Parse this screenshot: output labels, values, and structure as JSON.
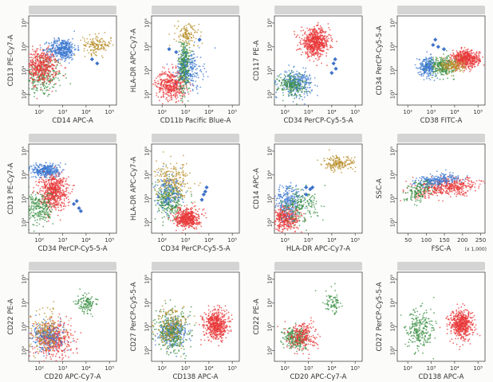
{
  "figure": {
    "colors": {
      "red": "#e8383a",
      "blue": "#3c78d0",
      "green": "#3a8f42",
      "gold": "#b88f2a",
      "gate_marker": "#3f72c8",
      "header_blur": "#d4d4d4",
      "frame": "#444444",
      "background": "#fbfbfa"
    },
    "scale_label": "(x 1,000)"
  },
  "chart_data": [
    {
      "type": "scatter",
      "xlabel": "CD14 APC-A",
      "ylabel": "CD13 PE-Cy7-A",
      "xscale": "log",
      "yscale": "log",
      "x_ticks": [
        "10²",
        "10³",
        "10⁴",
        "10⁵"
      ],
      "y_ticks": [
        "10²",
        "10³",
        "10⁴",
        "10⁵"
      ],
      "clusters": [
        {
          "color": "green",
          "center": [
            120,
            600
          ],
          "spread": [
            0.45,
            0.45
          ],
          "count": 300
        },
        {
          "color": "red",
          "center": [
            120,
            1500
          ],
          "spread": [
            0.35,
            0.35
          ],
          "count": 500
        },
        {
          "color": "blue",
          "center": [
            1000,
            8000
          ],
          "spread": [
            0.3,
            0.22
          ],
          "count": 400
        },
        {
          "color": "gold",
          "center": [
            30000,
            12000
          ],
          "spread": [
            0.3,
            0.2
          ],
          "count": 150
        }
      ],
      "markers": [
        [
          30000,
          2000
        ],
        [
          18000,
          3000
        ]
      ]
    },
    {
      "type": "scatter",
      "xlabel": "CD11b Pacific Blue-A",
      "ylabel": "HLA-DR APC-Cy7-A",
      "xscale": "log",
      "yscale": "log",
      "x_ticks": [
        "10²",
        "10³",
        "10⁴",
        "10⁵"
      ],
      "y_ticks": [
        "10²",
        "10³",
        "10⁴",
        "10⁵"
      ],
      "clusters": [
        {
          "color": "red",
          "center": [
            250,
            250
          ],
          "spread": [
            0.32,
            0.3
          ],
          "count": 450
        },
        {
          "color": "green",
          "center": [
            900,
            1500
          ],
          "spread": [
            0.12,
            0.55
          ],
          "count": 350
        },
        {
          "color": "blue",
          "center": [
            1500,
            1200
          ],
          "spread": [
            0.3,
            0.4
          ],
          "count": 200
        },
        {
          "color": "gold",
          "center": [
            1200,
            30000
          ],
          "spread": [
            0.25,
            0.25
          ],
          "count": 120
        }
      ],
      "markers": [
        [
          200,
          8000
        ],
        [
          400,
          6000
        ],
        [
          4000,
          20000
        ]
      ]
    },
    {
      "type": "scatter",
      "xlabel": "CD34 PerCP-Cy5-5-A",
      "ylabel": "CD117 PE-A",
      "xscale": "log",
      "yscale": "log",
      "x_ticks": [
        "10²",
        "10³",
        "10⁴",
        "10⁵"
      ],
      "y_ticks": [
        "10²",
        "10³",
        "10⁴",
        "10⁵"
      ],
      "clusters": [
        {
          "color": "red",
          "center": [
            2000,
            15000
          ],
          "spread": [
            0.3,
            0.28
          ],
          "count": 650
        },
        {
          "color": "blue",
          "center": [
            300,
            300
          ],
          "spread": [
            0.35,
            0.25
          ],
          "count": 300
        },
        {
          "color": "green",
          "center": [
            200,
            250
          ],
          "spread": [
            0.3,
            0.25
          ],
          "count": 200
        }
      ],
      "markers": [
        [
          12000,
          2000
        ],
        [
          15000,
          1200
        ],
        [
          10000,
          800
        ],
        [
          14000,
          3000
        ]
      ]
    },
    {
      "type": "scatter",
      "xlabel": "CD38 FITC-A",
      "ylabel": "CD34 PerCP-Cy5-5-A",
      "xscale": "log",
      "yscale": "log",
      "x_ticks": [
        "10²",
        "10³",
        "10⁴",
        "10⁵"
      ],
      "y_ticks": [
        "10²",
        "10³",
        "10⁴",
        "10⁵"
      ],
      "clusters": [
        {
          "color": "red",
          "center": [
            30000,
            3000
          ],
          "spread": [
            0.3,
            0.18
          ],
          "count": 550
        },
        {
          "color": "blue",
          "center": [
            700,
            1500
          ],
          "spread": [
            0.18,
            0.2
          ],
          "count": 250
        },
        {
          "color": "green",
          "center": [
            3000,
            1500
          ],
          "spread": [
            0.25,
            0.2
          ],
          "count": 250
        },
        {
          "color": "gold",
          "center": [
            8000,
            1600
          ],
          "spread": [
            0.25,
            0.15
          ],
          "count": 150
        }
      ],
      "markers": [
        [
          1500,
          20000
        ],
        [
          2000,
          10000
        ],
        [
          3500,
          8000
        ],
        [
          1200,
          12000
        ]
      ]
    },
    {
      "type": "scatter",
      "xlabel": "CD34 PerCP-Cy5-5-A",
      "ylabel": "CD13 PE-Cy7-A",
      "xscale": "log",
      "yscale": "log",
      "x_ticks": [
        "10²",
        "10³",
        "10⁴",
        "10⁵"
      ],
      "y_ticks": [
        "10²",
        "10³",
        "10⁴",
        "10⁵"
      ],
      "clusters": [
        {
          "color": "blue",
          "center": [
            200,
            15000
          ],
          "spread": [
            0.3,
            0.15
          ],
          "count": 350
        },
        {
          "color": "red",
          "center": [
            400,
            2000
          ],
          "spread": [
            0.3,
            0.35
          ],
          "count": 600
        },
        {
          "color": "green",
          "center": [
            100,
            400
          ],
          "spread": [
            0.3,
            0.35
          ],
          "count": 250
        }
      ],
      "markers": [
        [
          4000,
          800
        ],
        [
          5000,
          400
        ],
        [
          3000,
          600
        ],
        [
          6000,
          300
        ]
      ]
    },
    {
      "type": "scatter",
      "xlabel": "CD34 PerCP-Cy5-5-A",
      "ylabel": "HLA-DR APC-Cy7-A",
      "xscale": "log",
      "yscale": "log",
      "x_ticks": [
        "10²",
        "10³",
        "10⁴",
        "10⁵"
      ],
      "y_ticks": [
        "10²",
        "10³",
        "10⁴",
        "10⁵"
      ],
      "clusters": [
        {
          "color": "green",
          "center": [
            200,
            800
          ],
          "spread": [
            0.3,
            0.4
          ],
          "count": 300
        },
        {
          "color": "gold",
          "center": [
            300,
            5000
          ],
          "spread": [
            0.35,
            0.4
          ],
          "count": 250
        },
        {
          "color": "blue",
          "center": [
            200,
            1500
          ],
          "spread": [
            0.3,
            0.4
          ],
          "count": 150
        },
        {
          "color": "red",
          "center": [
            1200,
            150
          ],
          "spread": [
            0.25,
            0.2
          ],
          "count": 500
        }
      ],
      "markers": [
        [
          7000,
          2000
        ],
        [
          5000,
          900
        ],
        [
          8000,
          3000
        ],
        [
          6000,
          1500
        ]
      ]
    },
    {
      "type": "scatter",
      "xlabel": "HLA-DR APC-Cy7-A",
      "ylabel": "CD14 APC-A",
      "xscale": "log",
      "yscale": "log",
      "x_ticks": [
        "10²",
        "10³",
        "10⁴",
        "10⁵"
      ],
      "y_ticks": [
        "10²",
        "10³",
        "10⁴",
        "10⁵"
      ],
      "clusters": [
        {
          "color": "red",
          "center": [
            120,
            150
          ],
          "spread": [
            0.3,
            0.25
          ],
          "count": 400
        },
        {
          "color": "blue",
          "center": [
            150,
            800
          ],
          "spread": [
            0.3,
            0.35
          ],
          "count": 250
        },
        {
          "color": "green",
          "center": [
            400,
            500
          ],
          "spread": [
            0.4,
            0.35
          ],
          "count": 200
        },
        {
          "color": "gold",
          "center": [
            20000,
            30000
          ],
          "spread": [
            0.35,
            0.15
          ],
          "count": 180
        }
      ],
      "markers": [
        [
          800,
          1500
        ],
        [
          1200,
          2500
        ],
        [
          1500,
          3000
        ],
        [
          800,
          3000
        ]
      ]
    },
    {
      "type": "scatter",
      "xlabel": "FSC-A",
      "ylabel": "SSC-A",
      "xscale": "linear",
      "yscale": "log",
      "xlim": [
        20,
        262
      ],
      "x_unit": "(x 1,000)",
      "x_ticks": [
        "50",
        "100",
        "150",
        "200",
        "250"
      ],
      "y_ticks": [
        "10²",
        "10³",
        "10⁴",
        "10⁵"
      ],
      "clusters": [
        {
          "color": "red",
          "center": [
            160,
            3000
          ],
          "spread": [
            45,
            0.18
          ],
          "count": 450,
          "trend": 0.9
        },
        {
          "color": "blue",
          "center": [
            130,
            6000
          ],
          "spread": [
            30,
            0.12
          ],
          "count": 250,
          "trend": 0.6
        },
        {
          "color": "green",
          "center": [
            80,
            2000
          ],
          "spread": [
            20,
            0.2
          ],
          "count": 150,
          "trend": 1.2
        }
      ],
      "markers": []
    },
    {
      "type": "scatter",
      "xlabel": "CD20 APC-Cy7-A",
      "ylabel": "CD22 PE-A",
      "xscale": "log",
      "yscale": "log",
      "x_ticks": [
        "10²",
        "10³",
        "10⁴",
        "10⁵"
      ],
      "y_ticks": [
        "10²",
        "10³",
        "10⁴",
        "10⁵"
      ],
      "clusters": [
        {
          "color": "red",
          "center": [
            400,
            300
          ],
          "spread": [
            0.4,
            0.4
          ],
          "count": 450
        },
        {
          "color": "blue",
          "center": [
            250,
            400
          ],
          "spread": [
            0.35,
            0.3
          ],
          "count": 250
        },
        {
          "color": "gold",
          "center": [
            200,
            600
          ],
          "spread": [
            0.35,
            0.45
          ],
          "count": 200
        },
        {
          "color": "green",
          "center": [
            10000,
            10000
          ],
          "spread": [
            0.2,
            0.2
          ],
          "count": 120
        }
      ],
      "markers": []
    },
    {
      "type": "scatter",
      "xlabel": "CD138 APC-A",
      "ylabel": "CD27 PerCP-Cy5-5-A",
      "xscale": "log",
      "yscale": "log",
      "x_ticks": [
        "10²",
        "10³",
        "10⁴",
        "10⁵"
      ],
      "y_ticks": [
        "10²",
        "10³",
        "10⁴",
        "10⁵"
      ],
      "clusters": [
        {
          "color": "blue",
          "center": [
            300,
            600
          ],
          "spread": [
            0.3,
            0.3
          ],
          "count": 300
        },
        {
          "color": "green",
          "center": [
            250,
            600
          ],
          "spread": [
            0.35,
            0.45
          ],
          "count": 300
        },
        {
          "color": "gold",
          "center": [
            250,
            1000
          ],
          "spread": [
            0.35,
            0.4
          ],
          "count": 200
        },
        {
          "color": "red",
          "center": [
            20000,
            1200
          ],
          "spread": [
            0.25,
            0.3
          ],
          "count": 550
        }
      ],
      "markers": []
    },
    {
      "type": "scatter",
      "xlabel": "CD20 APC-Cy7-A",
      "ylabel": "CD22 PE-A",
      "xscale": "log",
      "yscale": "log",
      "x_ticks": [
        "10²",
        "10³",
        "10⁴",
        "10⁵"
      ],
      "y_ticks": [
        "10²",
        "10³",
        "10⁴",
        "10⁵"
      ],
      "clusters": [
        {
          "color": "green",
          "center": [
            300,
            350
          ],
          "spread": [
            0.25,
            0.22
          ],
          "count": 250
        },
        {
          "color": "red",
          "center": [
            600,
            400
          ],
          "spread": [
            0.3,
            0.3
          ],
          "count": 250
        },
        {
          "color": "green",
          "center": [
            10000,
            10000
          ],
          "spread": [
            0.2,
            0.25
          ],
          "count": 80
        }
      ],
      "markers": []
    },
    {
      "type": "scatter",
      "xlabel": "CD138 APC-A",
      "ylabel": "CD27 PerCP-Cy5-5-A",
      "xscale": "log",
      "yscale": "log",
      "x_ticks": [
        "10²",
        "10³",
        "10⁴",
        "10⁵"
      ],
      "y_ticks": [
        "10²",
        "10³",
        "10⁴",
        "10⁵"
      ],
      "clusters": [
        {
          "color": "green",
          "center": [
            300,
            700
          ],
          "spread": [
            0.3,
            0.45
          ],
          "count": 250
        },
        {
          "color": "red",
          "center": [
            20000,
            1200
          ],
          "spread": [
            0.25,
            0.3
          ],
          "count": 550
        }
      ],
      "markers": []
    }
  ]
}
